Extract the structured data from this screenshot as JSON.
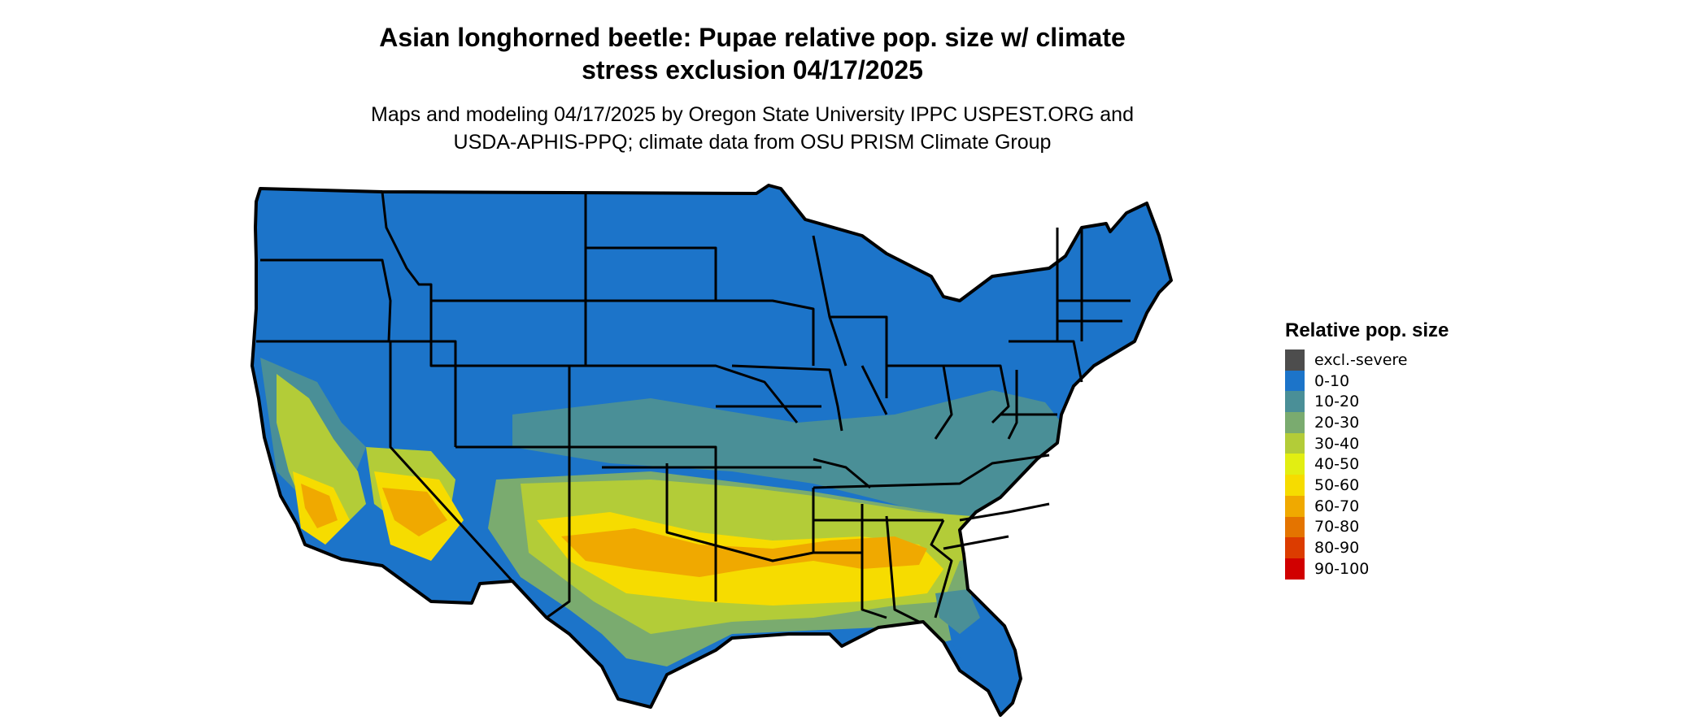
{
  "title_line1": "Asian longhorned beetle: Pupae relative pop. size w/ climate",
  "title_line2": "stress exclusion 04/17/2025",
  "subtitle_line1": "Maps and modeling 04/17/2025 by Oregon State University IPPC USPEST.ORG and",
  "subtitle_line2": "USDA-APHIS-PPQ; climate data from OSU PRISM Climate Group",
  "legend": {
    "title": "Relative pop. size",
    "items": [
      {
        "label": "excl.-severe",
        "color": "#4d4d4d"
      },
      {
        "label": "0-10",
        "color": "#1c74c9"
      },
      {
        "label": "10-20",
        "color": "#4a8f97"
      },
      {
        "label": "20-30",
        "color": "#7aab6f"
      },
      {
        "label": "30-40",
        "color": "#b3cc38"
      },
      {
        "label": "40-50",
        "color": "#e2ee12"
      },
      {
        "label": "50-60",
        "color": "#f6dc00"
      },
      {
        "label": "60-70",
        "color": "#f0a900"
      },
      {
        "label": "70-80",
        "color": "#e47400"
      },
      {
        "label": "80-90",
        "color": "#dc3c00"
      },
      {
        "label": "90-100",
        "color": "#d10000"
      }
    ]
  }
}
